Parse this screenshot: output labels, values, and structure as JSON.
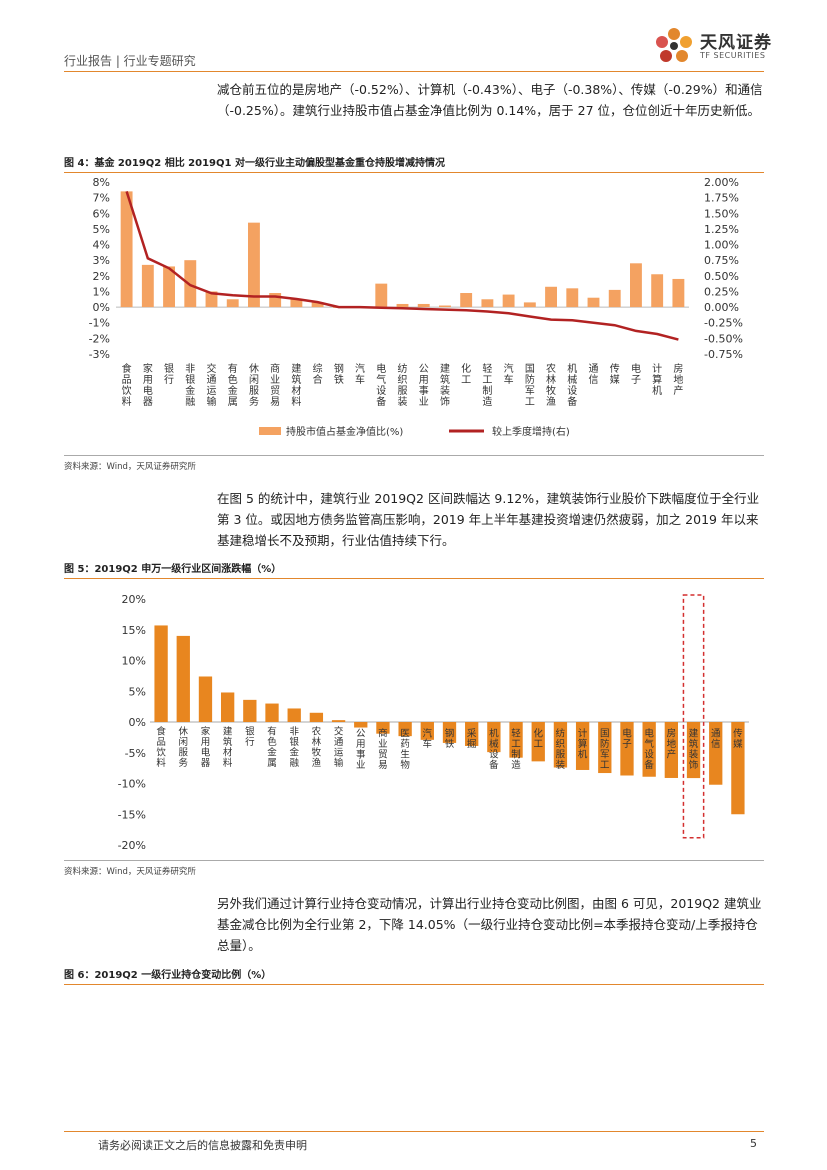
{
  "header": {
    "title": "行业报告 | 行业专题研究",
    "logo_cn": "天风证券",
    "logo_en": "TF SECURITIES"
  },
  "paragraphs": {
    "p1": "减仓前五位的是房地产（-0.52%）、计算机（-0.43%）、电子（-0.38%）、传媒（-0.29%）和通信（-0.25%）。建筑行业持股市值占基金净值比例为 0.14%，居于 27 位，仓位创近十年历史新低。",
    "p2": "在图 5 的统计中，建筑行业 2019Q2 区间跌幅达 9.12%，建筑装饰行业股价下跌幅度位于全行业第 3 位。或因地方债务监管高压影响，2019 年上半年基建投资增速仍然疲弱，加之 2019 年以来基建稳增长不及预期，行业估值持续下行。",
    "p3": "另外我们通过计算行业持仓变动情况，计算出行业持仓变动比例图，由图 6 可见，2019Q2 建筑业基金减仓比例为全行业第 2，下降 14.05%（一级行业持仓变动比例=本季报持仓变动/上季报持仓总量）。"
  },
  "figures": {
    "fig4_title": "图 4：基金 2019Q2 相比 2019Q1 对一级行业主动偏股型基金重仓持股增减持情况",
    "fig5_title": "图 5：2019Q2 申万一级行业区间涨跌幅（%）",
    "fig6_title": "图 6：2019Q2 一级行业持仓变动比例（%）",
    "source": "资料来源：Wind，天风证券研究所"
  },
  "chart_data": [
    {
      "type": "bar+line",
      "title": "基金 2019Q2 相比 2019Q1 对一级行业主动偏股型基金重仓持股增减持情况",
      "categories": [
        "食品饮料",
        "家用电器",
        "银行",
        "非银金融",
        "交通运输",
        "有色金属",
        "休闲服务",
        "商业贸易",
        "建筑材料",
        "综合",
        "钢铁",
        "汽车",
        "电气设备",
        "纺织服装",
        "公用事业",
        "建筑装饰",
        "化工",
        "轻工制造",
        "汽车",
        "国防军工",
        "农林牧渔",
        "机械设备",
        "通信",
        "传媒",
        "电子",
        "计算机",
        "房地产"
      ],
      "series": [
        {
          "name": "持股市值占基金净值比(%)",
          "axis": "left",
          "values": [
            7.4,
            2.7,
            2.6,
            3.0,
            1.0,
            0.5,
            5.4,
            0.9,
            0.5,
            0.3,
            0.0,
            0.0,
            1.5,
            0.2,
            0.2,
            0.1,
            0.9,
            0.5,
            0.8,
            0.3,
            1.3,
            1.2,
            0.6,
            1.1,
            2.8,
            2.1,
            1.8
          ]
        },
        {
          "name": "较上季度增持(右)",
          "axis": "right",
          "values": [
            1.85,
            0.78,
            0.62,
            0.35,
            0.22,
            0.19,
            0.17,
            0.17,
            0.13,
            0.08,
            0.0,
            0.0,
            -0.01,
            -0.02,
            -0.03,
            -0.04,
            -0.05,
            -0.07,
            -0.1,
            -0.15,
            -0.2,
            -0.21,
            -0.25,
            -0.29,
            -0.38,
            -0.43,
            -0.52
          ]
        }
      ],
      "y_left_ticks": [
        "8%",
        "7%",
        "6%",
        "5%",
        "4%",
        "3%",
        "2%",
        "1%",
        "0%",
        "-1%",
        "-2%",
        "-3%"
      ],
      "y_right_ticks": [
        "2.00%",
        "1.75%",
        "1.50%",
        "1.25%",
        "1.00%",
        "0.75%",
        "0.50%",
        "0.25%",
        "0.00%",
        "-0.25%",
        "-0.50%",
        "-0.75%"
      ],
      "ylim_left": [
        -3,
        8
      ],
      "ylim_right": [
        -0.75,
        2.0
      ],
      "legend": [
        "持股市值占基金净值比(%)",
        "较上季度增持(右)"
      ],
      "bar_color": "#F4A261",
      "line_color": "#B22222"
    },
    {
      "type": "bar",
      "title": "2019Q2 申万一级行业区间涨跌幅（%）",
      "categories": [
        "食品饮料",
        "休闲服务",
        "家用电器",
        "建筑材料",
        "银行",
        "有色金属",
        "非银金融",
        "农林牧渔",
        "交通运输",
        "公用事业",
        "商业贸易",
        "医药生物",
        "汽车",
        "钢铁",
        "采掘",
        "机械设备",
        "轻工制造",
        "化工",
        "纺织服装",
        "计算机",
        "国防军工",
        "电子",
        "电气设备",
        "房地产",
        "建筑装饰",
        "通信",
        "传媒"
      ],
      "values": [
        15.7,
        14.0,
        7.4,
        4.8,
        3.6,
        3.0,
        2.2,
        1.5,
        0.3,
        -0.9,
        -1.9,
        -2.3,
        -2.9,
        -3.4,
        -3.9,
        -4.9,
        -5.8,
        -6.4,
        -7.4,
        -7.8,
        -8.3,
        -8.7,
        -8.9,
        -9.1,
        -9.12,
        -10.2,
        -15.0
      ],
      "y_ticks": [
        "20%",
        "15%",
        "10%",
        "5%",
        "0%",
        "-5%",
        "-10%",
        "-15%",
        "-20%"
      ],
      "ylim": [
        -20,
        20
      ],
      "highlight": "建筑装饰",
      "bar_color": "#E8861F",
      "highlight_color": "#D32F2F"
    }
  ],
  "footer": {
    "disclaimer": "请务必阅读正文之后的信息披露和免责申明",
    "page": "5"
  }
}
